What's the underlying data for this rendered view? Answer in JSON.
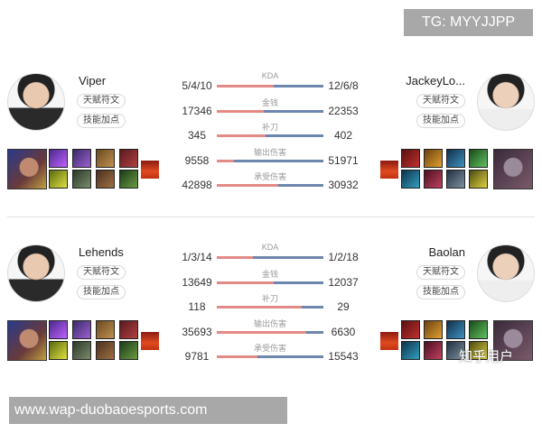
{
  "watermark_top": "TG: MYYJJPP",
  "watermark_bottom": "www.wap-duobaoesports.com",
  "watermark_zhihu": "知乎用户",
  "colors": {
    "left_bar": "#e38a87",
    "right_bar": "#6d86ad"
  },
  "buttons": {
    "runes": "天赋符文",
    "skills": "技能加点"
  },
  "matchups": [
    {
      "left": {
        "name": "Viper"
      },
      "right": {
        "name": "JackeyLo..."
      },
      "stats": [
        {
          "label": "KDA",
          "left": "5/4/10",
          "right": "12/6/8",
          "left_share": 0.53
        },
        {
          "label": "金钱",
          "left": "17346",
          "right": "22353",
          "left_share": 0.44
        },
        {
          "label": "补刀",
          "left": "345",
          "right": "402",
          "left_share": 0.46
        },
        {
          "label": "输出伤害",
          "left": "9558",
          "right": "51971",
          "left_share": 0.16
        },
        {
          "label": "承受伤害",
          "left": "42898",
          "right": "30932",
          "left_share": 0.58
        }
      ]
    },
    {
      "left": {
        "name": "Lehends"
      },
      "right": {
        "name": "Baolan"
      },
      "stats": [
        {
          "label": "KDA",
          "left": "1/3/14",
          "right": "1/2/18",
          "left_share": 0.34
        },
        {
          "label": "金钱",
          "left": "13649",
          "right": "12037",
          "left_share": 0.53
        },
        {
          "label": "补刀",
          "left": "118",
          "right": "29",
          "left_share": 0.8
        },
        {
          "label": "输出伤害",
          "left": "35693",
          "right": "6630",
          "left_share": 0.84
        },
        {
          "label": "承受伤害",
          "left": "9781",
          "right": "15543",
          "left_share": 0.38
        }
      ]
    }
  ]
}
